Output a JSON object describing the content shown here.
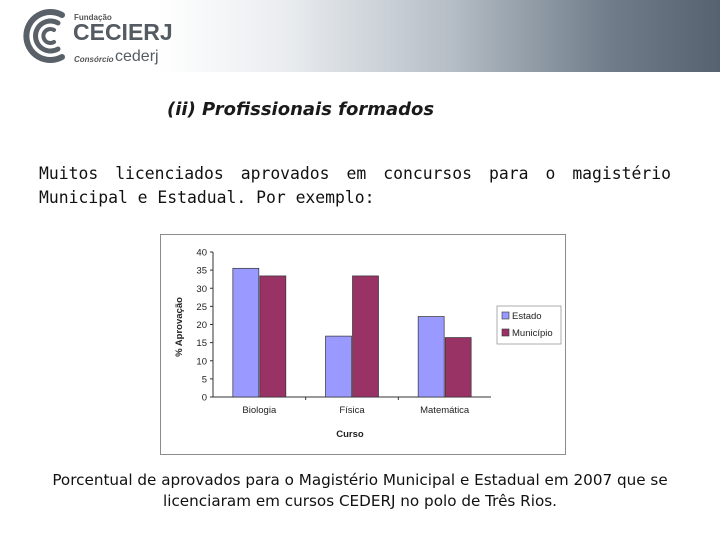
{
  "header": {
    "logo": {
      "fundacao": "Fundação",
      "cecierj": "CECIERJ",
      "consorcio": "Consórcio",
      "cederj": "cederj"
    }
  },
  "section_title": "(ii) Profissionais formados",
  "intro_text": "Muitos licenciados aprovados em concursos para o magistério Municipal e Estadual. Por exemplo:",
  "caption": "Porcentual de aprovados para o Magistério Municipal e Estadual em 2007 que se licenciaram em cursos CEDERJ no polo de Três Rios.",
  "colors": {
    "estado": "#9999ff",
    "municipio": "#993366",
    "logo_gray": "#555b62"
  },
  "chart_data": {
    "type": "bar",
    "categories": [
      "Biologia",
      "Física",
      "Matemática"
    ],
    "series": [
      {
        "name": "Estado",
        "values": [
          35.5,
          16.8,
          22.2
        ]
      },
      {
        "name": "Município",
        "values": [
          33.4,
          33.4,
          16.4
        ]
      }
    ],
    "xlabel": "Curso",
    "ylabel": "% Aprovação",
    "ylim": [
      0,
      40
    ],
    "yticks": [
      "0",
      "5",
      "10",
      "15",
      "20",
      "25",
      "30",
      "35",
      "40"
    ],
    "grid": false,
    "legend_position": "right"
  }
}
